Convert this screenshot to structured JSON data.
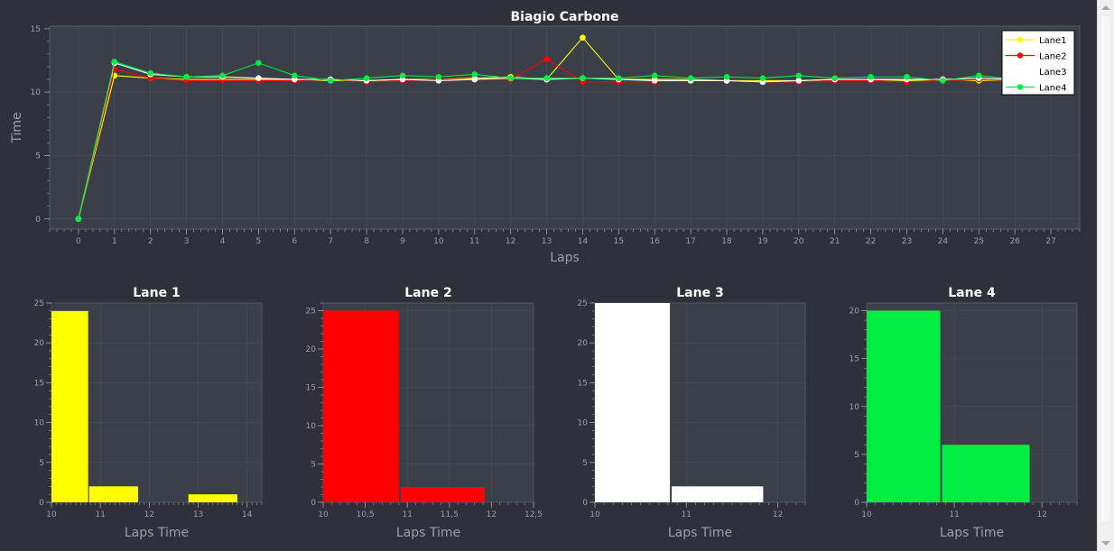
{
  "colors": {
    "background": "#2e3238",
    "plot_bg": "#3a3f48",
    "grid": "#4a505a",
    "axis_text": "#9aa0a8",
    "title": "#ffffff",
    "Lane1": "#ffff00",
    "Lane2": "#ff0000",
    "Lane3": "#ffffff",
    "Lane4": "#00ee44"
  },
  "chart_data": [
    {
      "type": "line",
      "title": "Biagio Carbone",
      "xlabel": "Laps",
      "ylabel": "Time",
      "xlim": [
        -0.8,
        27.8
      ],
      "ylim": [
        -0.8,
        15.2
      ],
      "x_ticks": [
        0,
        1,
        2,
        3,
        4,
        5,
        6,
        7,
        8,
        9,
        10,
        11,
        12,
        13,
        14,
        15,
        16,
        17,
        18,
        19,
        20,
        21,
        22,
        23,
        24,
        25,
        26,
        27
      ],
      "y_ticks": [
        0,
        5,
        10,
        15
      ],
      "grid": true,
      "legend_position": "top-right",
      "x": [
        0,
        1,
        2,
        3,
        4,
        5,
        6,
        7,
        8,
        9,
        10,
        11,
        12,
        13,
        14,
        15,
        16,
        17,
        18,
        19,
        20,
        21,
        22,
        23,
        24,
        25,
        26
      ],
      "series": [
        {
          "name": "Lane1",
          "color": "#ffff00",
          "values": [
            0,
            11.3,
            11.1,
            11.0,
            11.0,
            11.0,
            11.0,
            10.9,
            10.9,
            11.0,
            11.0,
            11.1,
            11.2,
            11.0,
            14.3,
            11.0,
            11.0,
            11.0,
            10.9,
            10.9,
            10.9,
            11.0,
            11.0,
            10.9,
            11.0,
            10.9,
            11.0
          ]
        },
        {
          "name": "Lane2",
          "color": "#ff0000",
          "values": [
            0,
            11.8,
            11.1,
            10.9,
            10.9,
            10.9,
            10.9,
            11.0,
            10.8,
            10.9,
            11.0,
            11.0,
            11.0,
            12.6,
            10.8,
            10.8,
            10.8,
            10.9,
            10.9,
            10.8,
            10.8,
            10.9,
            10.9,
            10.8,
            10.9,
            11.0,
            11.0
          ]
        },
        {
          "name": "Lane3",
          "color": "#ffffff",
          "values": [
            0,
            12.3,
            11.4,
            11.2,
            11.2,
            11.1,
            11.0,
            11.0,
            10.9,
            11.0,
            10.9,
            11.0,
            11.1,
            11.0,
            11.1,
            11.0,
            10.9,
            10.9,
            10.9,
            10.8,
            10.9,
            11.0,
            11.0,
            11.0,
            11.0,
            11.1,
            11.0
          ]
        },
        {
          "name": "Lane4",
          "color": "#00ee44",
          "values": [
            0,
            12.4,
            11.5,
            11.2,
            11.3,
            12.3,
            11.3,
            10.9,
            11.1,
            11.3,
            11.2,
            11.4,
            11.1,
            11.1,
            11.1,
            11.1,
            11.3,
            11.1,
            11.2,
            11.1,
            11.3,
            11.1,
            11.2,
            11.2,
            10.9,
            11.3,
            11.0
          ]
        }
      ]
    },
    {
      "type": "bar",
      "title": "Lane 1",
      "xlabel": "Laps Time",
      "color": "#ffff00",
      "xlim": [
        10,
        14.3
      ],
      "ylim": [
        0,
        25
      ],
      "x_ticks": [
        10,
        11,
        12,
        13,
        14
      ],
      "x_tick_labels": [
        "10",
        "11",
        "12",
        "13",
        "14"
      ],
      "y_ticks": [
        0,
        5,
        10,
        15,
        20,
        25
      ],
      "bins": [
        [
          10,
          10.75
        ],
        [
          10.77,
          11.77
        ],
        [
          12.8,
          13.8
        ]
      ],
      "values": [
        24,
        2,
        1
      ]
    },
    {
      "type": "bar",
      "title": "Lane 2",
      "xlabel": "Laps Time",
      "color": "#ff0000",
      "xlim": [
        10,
        12.5
      ],
      "ylim": [
        0,
        26
      ],
      "x_ticks": [
        10,
        10.5,
        11,
        11.5,
        12,
        12.5
      ],
      "x_tick_labels": [
        "10",
        "10,5",
        "11",
        "11,5",
        "12",
        "12,5"
      ],
      "y_ticks": [
        0,
        5,
        10,
        15,
        20,
        25
      ],
      "bins": [
        [
          10,
          10.9
        ],
        [
          10.92,
          11.92
        ]
      ],
      "values": [
        25,
        2
      ]
    },
    {
      "type": "bar",
      "title": "Lane 3",
      "xlabel": "Laps Time",
      "color": "#ffffff",
      "xlim": [
        10,
        12.3
      ],
      "ylim": [
        0,
        25
      ],
      "x_ticks": [
        10,
        11,
        12
      ],
      "x_tick_labels": [
        "10",
        "11",
        "12"
      ],
      "y_ticks": [
        0,
        5,
        10,
        15,
        20,
        25
      ],
      "bins": [
        [
          10,
          10.82
        ],
        [
          10.84,
          11.84
        ]
      ],
      "values": [
        25,
        2
      ]
    },
    {
      "type": "bar",
      "title": "Lane 4",
      "xlabel": "Laps Time",
      "color": "#00ee44",
      "xlim": [
        10,
        12.4
      ],
      "ylim": [
        0,
        20.8
      ],
      "x_ticks": [
        10,
        11,
        12
      ],
      "x_tick_labels": [
        "10",
        "11",
        "12"
      ],
      "y_ticks": [
        0,
        5,
        10,
        15,
        20
      ],
      "bins": [
        [
          10,
          10.84
        ],
        [
          10.86,
          11.86
        ]
      ],
      "values": [
        20,
        6
      ]
    }
  ]
}
